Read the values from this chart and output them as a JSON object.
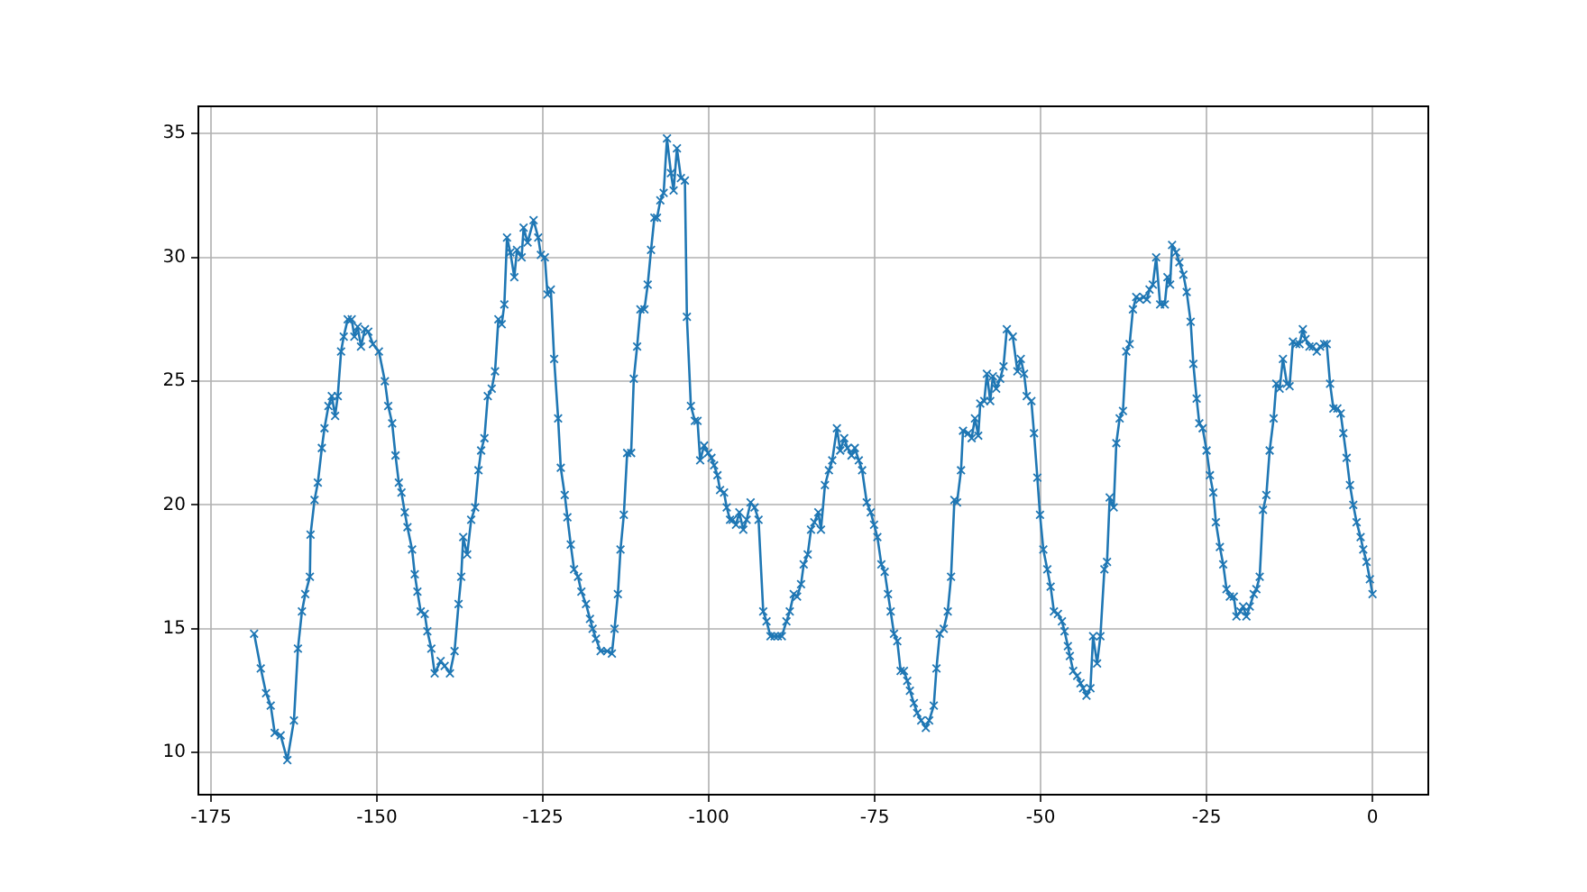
{
  "chart_data": {
    "type": "line",
    "xlim": [
      -176.9,
      8.4
    ],
    "xticks": [
      -175,
      -150,
      -125,
      -100,
      -75,
      -50,
      -25,
      0
    ],
    "ylim": [
      8.3,
      36.1
    ],
    "yticks": [
      10,
      15,
      20,
      25,
      30,
      35
    ],
    "grid": true,
    "marker": "cross",
    "line_style": "solid",
    "series": [
      {
        "color": "#1f77b4",
        "x": [
          -168.5,
          -167.5,
          -166.7,
          -166.0,
          -165.4,
          -164.5,
          -163.5,
          -162.5,
          -161.9,
          -161.3,
          -160.8,
          -160.1,
          -160.0,
          -159.4,
          -158.9,
          -158.3,
          -157.9,
          -157.3,
          -156.8,
          -156.3,
          -155.9,
          -155.4,
          -155.0,
          -154.4,
          -153.8,
          -153.4,
          -152.9,
          -152.4,
          -151.8,
          -151.3,
          -150.6,
          -149.7,
          -148.8,
          -148.3,
          -147.7,
          -147.2,
          -146.7,
          -146.3,
          -145.8,
          -145.4,
          -144.7,
          -144.3,
          -143.9,
          -143.4,
          -142.8,
          -142.4,
          -141.8,
          -141.3,
          -140.4,
          -139.8,
          -139.0,
          -138.3,
          -137.7,
          -137.3,
          -137.0,
          -136.4,
          -135.8,
          -135.2,
          -134.7,
          -134.3,
          -133.8,
          -133.3,
          -132.7,
          -132.2,
          -131.7,
          -131.2,
          -130.8,
          -130.4,
          -129.9,
          -129.3,
          -128.9,
          -128.2,
          -127.9,
          -127.3,
          -126.4,
          -125.7,
          -125.3,
          -124.7,
          -124.3,
          -123.8,
          -123.3,
          -122.7,
          -122.3,
          -121.7,
          -121.3,
          -120.8,
          -120.3,
          -119.7,
          -119.2,
          -118.5,
          -117.9,
          -117.5,
          -117.0,
          -116.3,
          -115.3,
          -114.6,
          -114.2,
          -113.7,
          -113.3,
          -112.8,
          -112.3,
          -111.7,
          -111.3,
          -110.8,
          -110.3,
          -109.7,
          -109.2,
          -108.7,
          -108.2,
          -107.8,
          -107.3,
          -106.8,
          -106.3,
          -105.7,
          -105.3,
          -104.8,
          -104.2,
          -103.6,
          -103.3,
          -102.7,
          -102.1,
          -101.7,
          -101.3,
          -100.7,
          -100.1,
          -99.6,
          -99.2,
          -98.7,
          -98.3,
          -97.7,
          -97.3,
          -96.8,
          -96.4,
          -95.9,
          -95.4,
          -94.8,
          -94.3,
          -93.7,
          -93.1,
          -92.5,
          -91.8,
          -91.3,
          -90.7,
          -90.1,
          -89.6,
          -89.0,
          -88.3,
          -87.8,
          -87.2,
          -86.7,
          -86.1,
          -85.7,
          -85.1,
          -84.6,
          -84.1,
          -83.5,
          -83.1,
          -82.5,
          -81.9,
          -81.4,
          -80.7,
          -80.2,
          -79.6,
          -79.1,
          -78.5,
          -78.0,
          -77.4,
          -76.9,
          -76.2,
          -75.6,
          -75.1,
          -74.6,
          -74.0,
          -73.5,
          -73.0,
          -72.6,
          -72.1,
          -71.6,
          -71.1,
          -70.6,
          -70.1,
          -69.7,
          -69.1,
          -68.6,
          -68.0,
          -67.3,
          -66.8,
          -66.1,
          -65.7,
          -65.2,
          -64.6,
          -64.0,
          -63.5,
          -63.0,
          -62.6,
          -62.0,
          -61.7,
          -60.9,
          -60.4,
          -59.9,
          -59.4,
          -59.1,
          -58.5,
          -58.1,
          -57.6,
          -57.2,
          -56.7,
          -56.1,
          -55.6,
          -55.1,
          -54.2,
          -53.5,
          -53.0,
          -52.5,
          -52.1,
          -51.4,
          -51.0,
          -50.5,
          -50.1,
          -49.6,
          -49.0,
          -48.5,
          -48.0,
          -47.4,
          -46.8,
          -46.4,
          -45.9,
          -45.6,
          -45.1,
          -44.5,
          -44.0,
          -43.6,
          -43.1,
          -42.5,
          -42.1,
          -41.5,
          -41.0,
          -40.4,
          -40.0,
          -39.6,
          -39.0,
          -38.6,
          -38.1,
          -37.6,
          -37.1,
          -36.6,
          -36.1,
          -35.6,
          -35.1,
          -34.5,
          -34.0,
          -33.6,
          -33.1,
          -32.6,
          -32.0,
          -31.3,
          -30.9,
          -30.5,
          -30.2,
          -29.6,
          -29.1,
          -28.5,
          -28.0,
          -27.4,
          -27.0,
          -26.5,
          -26.1,
          -25.6,
          -25.0,
          -24.5,
          -24.0,
          -23.6,
          -23.0,
          -22.5,
          -22.0,
          -21.5,
          -20.9,
          -20.5,
          -19.9,
          -19.5,
          -19.0,
          -18.5,
          -17.9,
          -17.5,
          -17.0,
          -16.5,
          -16.0,
          -15.5,
          -14.9,
          -14.5,
          -14.0,
          -13.5,
          -12.9,
          -12.5,
          -12.0,
          -11.5,
          -11.0,
          -10.5,
          -10.1,
          -9.5,
          -9.0,
          -8.4,
          -7.9,
          -7.3,
          -6.9,
          -6.4,
          -5.9,
          -5.3,
          -4.8,
          -4.4,
          -3.9,
          -3.4,
          -2.9,
          -2.4,
          -1.8,
          -1.4,
          -0.9,
          -0.4,
          0
        ],
        "values": [
          14.8,
          13.4,
          12.4,
          11.9,
          10.8,
          10.7,
          9.7,
          11.3,
          14.2,
          15.7,
          16.4,
          17.1,
          18.8,
          20.2,
          20.9,
          22.3,
          23.1,
          24.0,
          24.4,
          23.6,
          24.4,
          26.2,
          26.8,
          27.5,
          27.5,
          26.8,
          27.2,
          26.4,
          27.1,
          27.0,
          26.5,
          26.2,
          25.0,
          24.0,
          23.3,
          22.0,
          20.9,
          20.5,
          19.7,
          19.1,
          18.2,
          17.2,
          16.5,
          15.7,
          15.6,
          14.9,
          14.2,
          13.2,
          13.7,
          13.5,
          13.2,
          14.1,
          16.0,
          17.1,
          18.7,
          18.0,
          19.4,
          19.9,
          21.4,
          22.2,
          22.7,
          24.4,
          24.7,
          25.4,
          27.5,
          27.3,
          28.1,
          30.8,
          30.2,
          29.2,
          30.3,
          30.0,
          31.2,
          30.6,
          31.5,
          30.8,
          30.1,
          30.0,
          28.5,
          28.7,
          25.9,
          23.5,
          21.5,
          20.4,
          19.5,
          18.4,
          17.4,
          17.1,
          16.5,
          16.0,
          15.4,
          15.0,
          14.6,
          14.1,
          14.1,
          14.0,
          15.0,
          16.4,
          18.2,
          19.6,
          22.1,
          22.1,
          25.1,
          26.4,
          27.9,
          27.9,
          28.9,
          30.3,
          31.6,
          31.6,
          32.3,
          32.6,
          34.8,
          33.4,
          32.7,
          34.4,
          33.2,
          33.1,
          27.6,
          24.0,
          23.4,
          23.4,
          21.8,
          22.4,
          22.1,
          21.9,
          21.6,
          21.2,
          20.6,
          20.5,
          19.9,
          19.4,
          19.4,
          19.2,
          19.7,
          19.0,
          19.4,
          20.1,
          19.9,
          19.4,
          15.7,
          15.3,
          14.7,
          14.7,
          14.7,
          14.7,
          15.3,
          15.7,
          16.4,
          16.3,
          16.8,
          17.6,
          18.0,
          19.0,
          19.3,
          19.7,
          19.0,
          20.8,
          21.4,
          21.8,
          23.1,
          22.2,
          22.7,
          22.3,
          22.0,
          22.3,
          21.8,
          21.4,
          20.1,
          19.7,
          19.2,
          18.7,
          17.6,
          17.3,
          16.4,
          15.7,
          14.8,
          14.5,
          13.3,
          13.3,
          12.9,
          12.5,
          12.0,
          11.6,
          11.3,
          11.0,
          11.3,
          11.9,
          13.4,
          14.8,
          15.0,
          15.7,
          17.1,
          20.2,
          20.1,
          21.4,
          23.0,
          22.9,
          22.7,
          23.5,
          22.8,
          24.1,
          24.2,
          25.3,
          24.2,
          25.2,
          24.7,
          25.1,
          25.6,
          27.1,
          26.8,
          25.4,
          25.9,
          25.3,
          24.4,
          24.2,
          22.9,
          21.1,
          19.6,
          18.2,
          17.4,
          16.7,
          15.7,
          15.6,
          15.3,
          14.9,
          14.3,
          13.9,
          13.3,
          13.1,
          12.8,
          12.6,
          12.3,
          12.6,
          14.7,
          13.6,
          14.7,
          17.4,
          17.7,
          20.3,
          19.9,
          22.5,
          23.5,
          23.8,
          26.2,
          26.5,
          27.9,
          28.4,
          28.3,
          28.4,
          28.3,
          28.7,
          28.9,
          30.0,
          28.1,
          28.1,
          29.2,
          28.9,
          30.5,
          30.2,
          29.8,
          29.3,
          28.6,
          27.4,
          25.7,
          24.3,
          23.3,
          23.1,
          22.2,
          21.2,
          20.5,
          19.3,
          18.3,
          17.6,
          16.6,
          16.3,
          16.3,
          15.5,
          15.7,
          15.9,
          15.5,
          15.9,
          16.4,
          16.6,
          17.1,
          19.8,
          20.4,
          22.2,
          23.5,
          24.9,
          24.7,
          25.9,
          24.9,
          24.8,
          26.6,
          26.5,
          26.5,
          27.1,
          26.7,
          26.4,
          26.4,
          26.2,
          26.4,
          26.5,
          26.5,
          24.9,
          23.9,
          23.9,
          23.7,
          22.9,
          21.9,
          20.8,
          20.0,
          19.3,
          18.7,
          18.2,
          17.7,
          17.0,
          16.4
        ]
      }
    ]
  }
}
